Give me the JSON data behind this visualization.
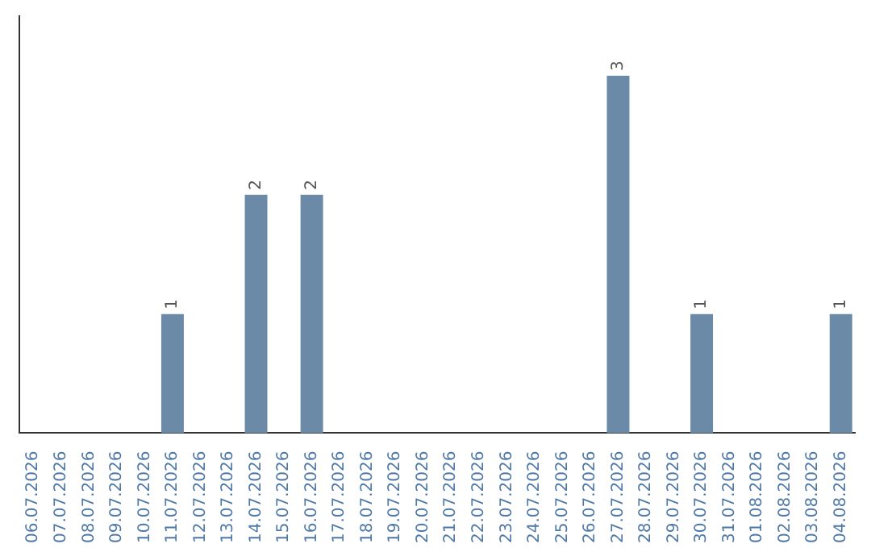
{
  "chart_data": {
    "type": "bar",
    "categories": [
      "06.07.2026",
      "07.07.2026",
      "08.07.2026",
      "09.07.2026",
      "10.07.2026",
      "11.07.2026",
      "12.07.2026",
      "13.07.2026",
      "14.07.2026",
      "15.07.2026",
      "16.07.2026",
      "17.07.2026",
      "18.07.2026",
      "19.07.2026",
      "20.07.2026",
      "21.07.2026",
      "22.07.2026",
      "23.07.2026",
      "24.07.2026",
      "25.07.2026",
      "26.07.2026",
      "27.07.2026",
      "28.07.2026",
      "29.07.2026",
      "30.07.2026",
      "31.07.2026",
      "01.08.2026",
      "02.08.2026",
      "03.08.2026",
      "04.08.2026"
    ],
    "values": [
      0,
      0,
      0,
      0,
      0,
      1,
      0,
      0,
      2,
      0,
      2,
      0,
      0,
      0,
      0,
      0,
      0,
      0,
      0,
      0,
      0,
      3,
      0,
      0,
      1,
      0,
      0,
      0,
      0,
      1
    ],
    "value_labels": [
      null,
      null,
      null,
      null,
      null,
      "1",
      null,
      null,
      "2",
      null,
      "2",
      null,
      null,
      null,
      null,
      null,
      null,
      null,
      null,
      null,
      null,
      "3",
      null,
      null,
      "1",
      null,
      null,
      null,
      null,
      "1"
    ],
    "color": "#6a8aa8",
    "grid": false,
    "legend": false,
    "tick_labels": "x"
  }
}
